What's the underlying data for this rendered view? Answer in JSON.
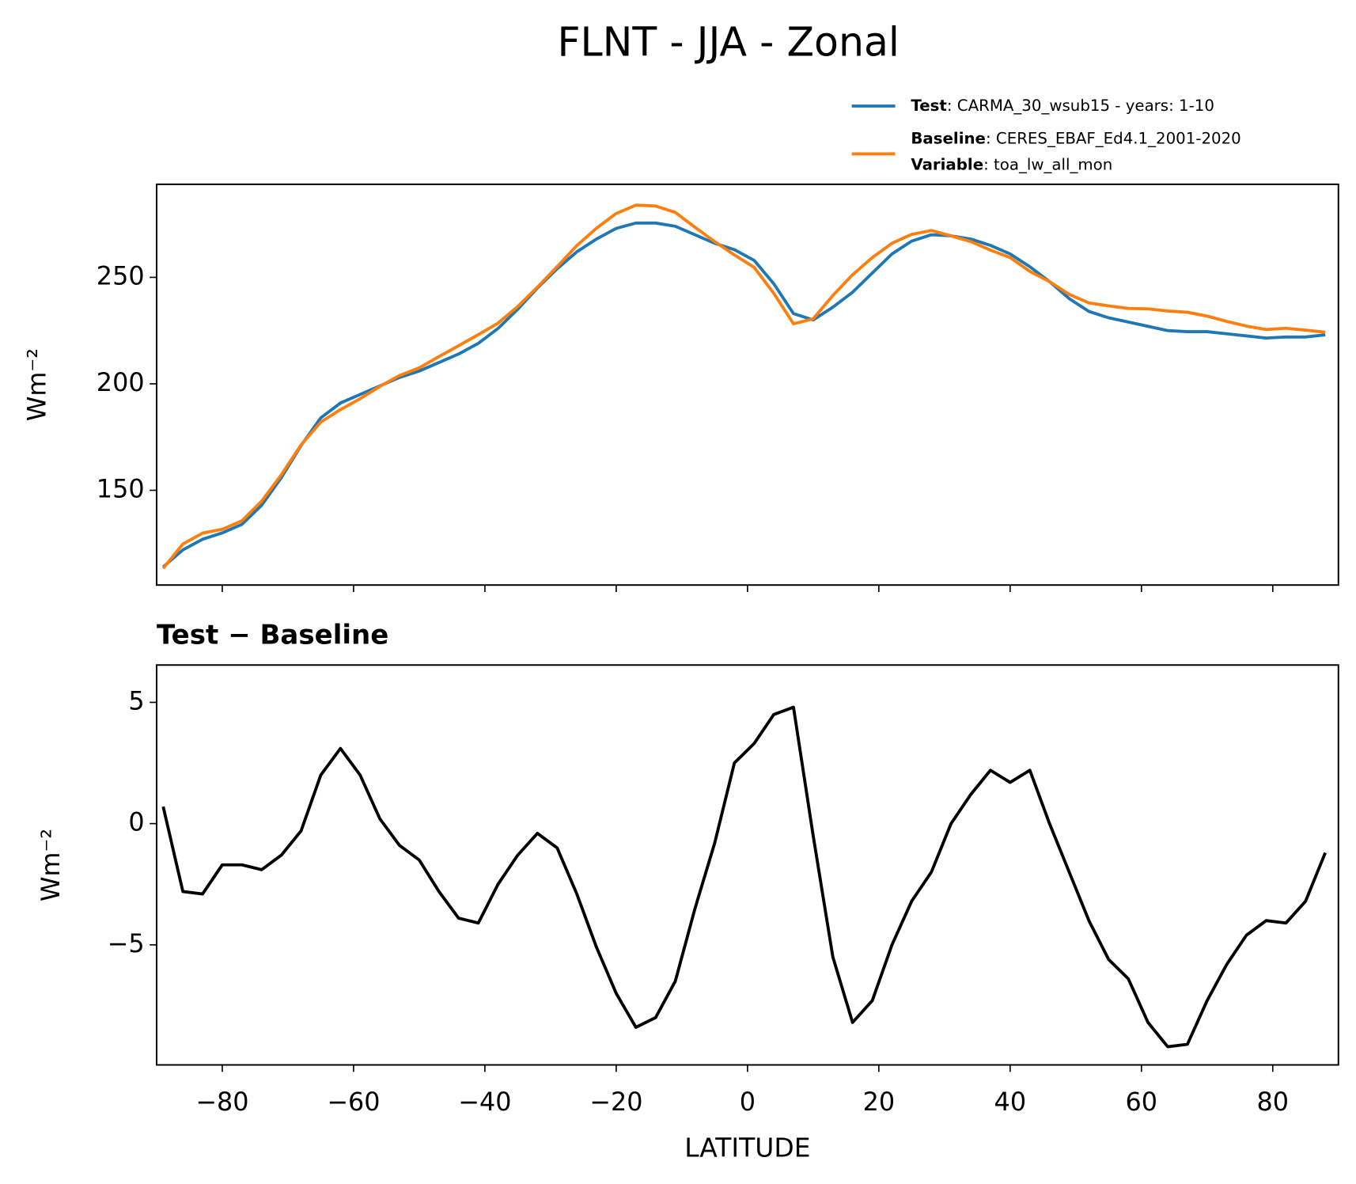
{
  "chart_data": [
    {
      "type": "line",
      "title": "FLNT - JJA - Zonal",
      "ylabel": "Wm⁻²",
      "x": [
        -89,
        -86,
        -83,
        -80,
        -77,
        -74,
        -71,
        -68,
        -65,
        -62,
        -59,
        -56,
        -53,
        -50,
        -47,
        -44,
        -41,
        -38,
        -35,
        -32,
        -29,
        -26,
        -23,
        -20,
        -17,
        -14,
        -11,
        -8,
        -5,
        -2,
        1,
        4,
        7,
        10,
        13,
        16,
        19,
        22,
        25,
        28,
        31,
        34,
        37,
        40,
        43,
        46,
        49,
        52,
        55,
        58,
        61,
        64,
        67,
        70,
        73,
        76,
        79,
        82,
        85,
        88
      ],
      "series": [
        {
          "name": "Test",
          "details": ": CARMA_30_wsub15 - years: 1-10",
          "color": "#1f77b4",
          "values": [
            114,
            122,
            127,
            130,
            134,
            143,
            156,
            171,
            184,
            191,
            195,
            199,
            203,
            206,
            210,
            214,
            219,
            226,
            235,
            245,
            254,
            262,
            268,
            273,
            275.5,
            275.5,
            274,
            270,
            266,
            263,
            258,
            247,
            233,
            230,
            236,
            243,
            252,
            261,
            267,
            270,
            269.5,
            268,
            265,
            261,
            255,
            248,
            240,
            234,
            231,
            229,
            227,
            225,
            224.5,
            224.5,
            223.5,
            222.5,
            221.5,
            222,
            222,
            223
          ]
        },
        {
          "name": "Baseline",
          "details": ": CERES_EBAF_Ed4.1_2001-2020",
          "color": "#ff7f0e",
          "values": [
            113.3,
            124.8,
            129.9,
            131.7,
            135.7,
            144.9,
            157.3,
            171.3,
            182,
            187.9,
            193,
            198.8,
            203.9,
            207.5,
            212.8,
            217.9,
            223.1,
            228.5,
            236.3,
            245.4,
            255,
            264.9,
            273.1,
            280,
            283.9,
            283.5,
            280.5,
            273.5,
            266.8,
            260.5,
            254.7,
            242.5,
            228.2,
            230.5,
            241.5,
            251.2,
            259.3,
            266,
            270.2,
            272,
            269.5,
            266.8,
            262.8,
            259.3,
            252.8,
            248,
            242,
            238,
            236.6,
            235.4,
            235.2,
            234.2,
            233.6,
            231.8,
            229.3,
            227.1,
            225.5,
            226.1,
            225.2,
            224.2
          ]
        }
      ],
      "variable": {
        "name": "Variable",
        "details": ": toa_lw_all_mon"
      },
      "xlim": [
        -90,
        90
      ],
      "xticks": [
        -80,
        -60,
        -40,
        -20,
        0,
        20,
        40,
        60,
        80
      ],
      "ylim": [
        105.5,
        293.7
      ],
      "yticks": [
        150,
        200,
        250
      ]
    },
    {
      "type": "line",
      "title": "Test − Baseline",
      "ylabel": "Wm⁻²",
      "xlabel": "LATITUDE",
      "x": [
        -89,
        -86,
        -83,
        -80,
        -77,
        -74,
        -71,
        -68,
        -65,
        -62,
        -59,
        -56,
        -53,
        -50,
        -47,
        -44,
        -41,
        -38,
        -35,
        -32,
        -29,
        -26,
        -23,
        -20,
        -17,
        -14,
        -11,
        -8,
        -5,
        -2,
        1,
        4,
        7,
        10,
        13,
        16,
        19,
        22,
        25,
        28,
        31,
        34,
        37,
        40,
        43,
        46,
        49,
        52,
        55,
        58,
        61,
        64,
        67,
        70,
        73,
        76,
        79,
        82,
        85,
        88
      ],
      "series": [
        {
          "color": "#000000",
          "values": [
            0.7,
            -2.8,
            -2.9,
            -1.7,
            -1.7,
            -1.9,
            -1.3,
            -0.3,
            2.0,
            3.1,
            2.0,
            0.2,
            -0.9,
            -1.5,
            -2.8,
            -3.9,
            -4.1,
            -2.5,
            -1.3,
            -0.4,
            -1.0,
            -2.9,
            -5.1,
            -7.0,
            -8.4,
            -8.0,
            -6.5,
            -3.5,
            -0.8,
            2.5,
            3.3,
            4.5,
            4.8,
            -0.5,
            -5.5,
            -8.2,
            -7.3,
            -5.0,
            -3.2,
            -2.0,
            0.0,
            1.2,
            2.2,
            1.7,
            2.2,
            0,
            -2.0,
            -4.0,
            -5.6,
            -6.4,
            -8.2,
            -9.2,
            -9.1,
            -7.3,
            -5.8,
            -4.6,
            -4.0,
            -4.1,
            -3.2,
            -1.2
          ]
        }
      ],
      "xlim": [
        -90,
        90
      ],
      "xticks": [
        {
          "value": -80,
          "label": "−80"
        },
        {
          "value": -60,
          "label": "−60"
        },
        {
          "value": -40,
          "label": "−40"
        },
        {
          "value": -20,
          "label": "−20"
        },
        0,
        20,
        40,
        60,
        80
      ],
      "ylim": [
        -9.95,
        6.54
      ],
      "yticks": [
        {
          "value": -5,
          "label": "−5"
        },
        0,
        5
      ]
    }
  ]
}
